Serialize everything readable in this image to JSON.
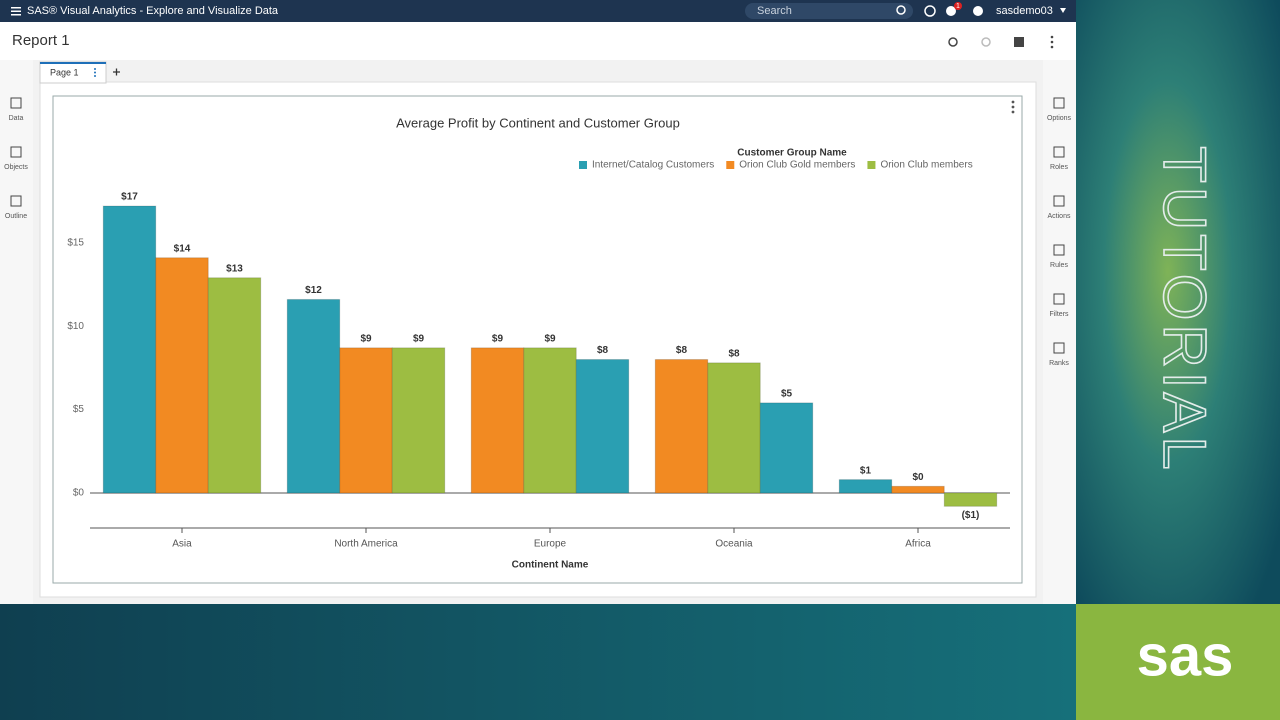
{
  "app_bar": {
    "title": "SAS® Visual Analytics - Explore and Visualize Data",
    "search_placeholder": "Search",
    "notification_count": 1,
    "user": "sasdemo03"
  },
  "report": {
    "title": "Report 1",
    "page_tab": "Page 1"
  },
  "left_panel": [
    "Data",
    "Objects",
    "Outline"
  ],
  "right_panel": [
    "Options",
    "Roles",
    "Actions",
    "Rules",
    "Filters",
    "Ranks"
  ],
  "banner": {
    "tutorial": "TUTORIAL",
    "brand": "sas"
  },
  "chart_data": {
    "type": "bar",
    "title": "Average Profit by Continent and Customer Group",
    "legend_title": "Customer Group Name",
    "legend_position": "top-right",
    "x_label": "Continent Name",
    "categories": [
      "Asia",
      "North America",
      "Europe",
      "Oceania",
      "Africa"
    ],
    "series": [
      {
        "name": "Internet/Catalog Customers",
        "color": "#2a9fb2",
        "values": [
          17.2,
          11.6,
          8.0,
          5.4,
          0.8
        ],
        "value_labels": [
          "$17",
          "$12",
          "$8",
          "$5",
          "$1"
        ]
      },
      {
        "name": "Orion Club Gold members",
        "color": "#f28a22",
        "values": [
          14.1,
          8.7,
          8.7,
          8.0,
          0.4
        ],
        "value_labels": [
          "$14",
          "$9",
          "$9",
          "$8",
          "$0"
        ]
      },
      {
        "name": "Orion Club members",
        "color": "#9dbd42",
        "values": [
          12.9,
          8.7,
          8.7,
          7.8,
          -0.8
        ],
        "value_labels": [
          "$13",
          "$9",
          "$9",
          "$8",
          "($1)"
        ]
      }
    ],
    "ylim": [
      -2.1,
      19
    ],
    "yticks": [
      {
        "value": 0,
        "label": "$0"
      },
      {
        "value": 5,
        "label": "$5"
      },
      {
        "value": 10,
        "label": "$10"
      },
      {
        "value": 15,
        "label": "$15"
      }
    ],
    "grid": false
  }
}
